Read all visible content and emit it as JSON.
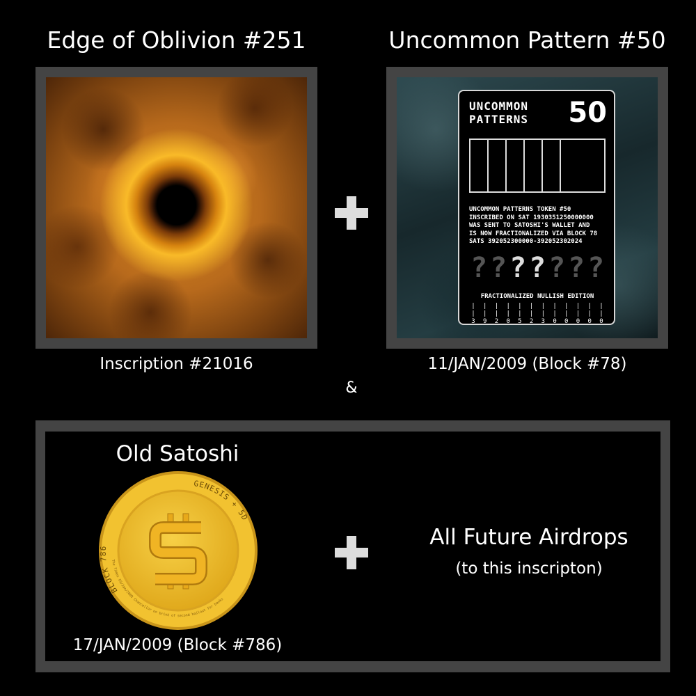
{
  "left_item": {
    "title": "Edge of Oblivion #251",
    "caption": "Inscription #21016"
  },
  "right_item": {
    "title": "Uncommon Pattern #50",
    "caption": "11/JAN/2009 (Block #78)",
    "card": {
      "heading_line1": "UNCOMMON",
      "heading_line2": "PATTERNS",
      "number": "50",
      "text_lines": [
        "UNCOMMON PATTERNS TOKEN #50",
        "INSCRIBED ON SAT 1930351250000000",
        "WAS SENT TO SATOSHI'S WALLET AND",
        "IS NOW FRACTIONALIZED VIA BLOCK 78",
        "SATS 392052300000-392052302024"
      ],
      "glyphs": [
        "?",
        "?",
        "?",
        "?",
        "?",
        "?",
        "?"
      ],
      "edition": "FRACTIONALIZED NULLISH EDITION",
      "digits": [
        "3",
        "9",
        "2",
        "0",
        "5",
        "2",
        "3",
        "0",
        "0",
        "0",
        "0",
        "0"
      ]
    }
  },
  "ampersand": "&",
  "bottom": {
    "coin_title": "Old Satoshi",
    "coin_caption": "17/JAN/2009 (Block #786)",
    "coin": {
      "ring_left": "BLOCK 786",
      "ring_right": "GENESIS + 5D",
      "ring_bottom": "The Times 03/Jan/2009 Chancellor on brink of second bailout for banks",
      "symbol": "bitcoin-icon"
    },
    "airdrops_title": "All Future Airdrops",
    "airdrops_subtitle": "(to this inscripton)"
  },
  "colors": {
    "background": "#000000",
    "frame": "#444444",
    "coin_gold": "#f2c230",
    "coin_rim": "#e0a91c"
  }
}
